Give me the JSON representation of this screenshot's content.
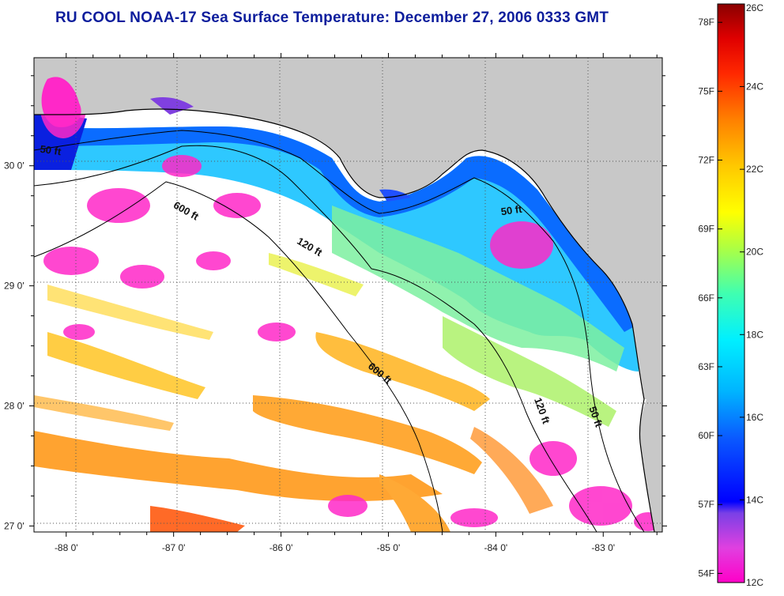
{
  "title": "RU COOL  NOAA-17  Sea Surface Temperature:  December 27, 2006 0333 GMT",
  "map": {
    "lon_ticks": [
      "-88 0'",
      "-87 0'",
      "-86 0'",
      "-85 0'",
      "-84 0'",
      "-83 0'"
    ],
    "lat_ticks": [
      "30 0'",
      "29 0'",
      "28 0'",
      "27 0'"
    ],
    "lon_range": [
      -88.3,
      -82.45
    ],
    "lat_range": [
      26.95,
      30.9
    ],
    "contours": [
      {
        "label": "50 ft",
        "lon": -88.15,
        "lat": 30.1,
        "angle": 8
      },
      {
        "label": "600 ft",
        "lon": -86.9,
        "lat": 29.6,
        "angle": 30
      },
      {
        "label": "120 ft",
        "lon": -85.75,
        "lat": 29.3,
        "angle": 30
      },
      {
        "label": "50 ft",
        "lon": -83.85,
        "lat": 29.6,
        "angle": -8
      },
      {
        "label": "600 ft",
        "lon": -85.1,
        "lat": 28.25,
        "angle": 40
      },
      {
        "label": "120 ft",
        "lon": -83.6,
        "lat": 27.95,
        "angle": 70
      },
      {
        "label": "50 ft",
        "lon": -83.1,
        "lat": 27.9,
        "angle": 70
      }
    ],
    "colors": {
      "land": "#c8c8c8",
      "sea_no_data": "#ffffff"
    }
  },
  "colorbar": {
    "fahrenheit_labels": [
      "78F",
      "75F",
      "72F",
      "69F",
      "66F",
      "63F",
      "60F",
      "57F",
      "54F"
    ],
    "celsius_labels": [
      "26C",
      "24C",
      "22C",
      "20C",
      "18C",
      "16C",
      "14C",
      "12C"
    ],
    "min_c": 12,
    "max_c": 26
  }
}
